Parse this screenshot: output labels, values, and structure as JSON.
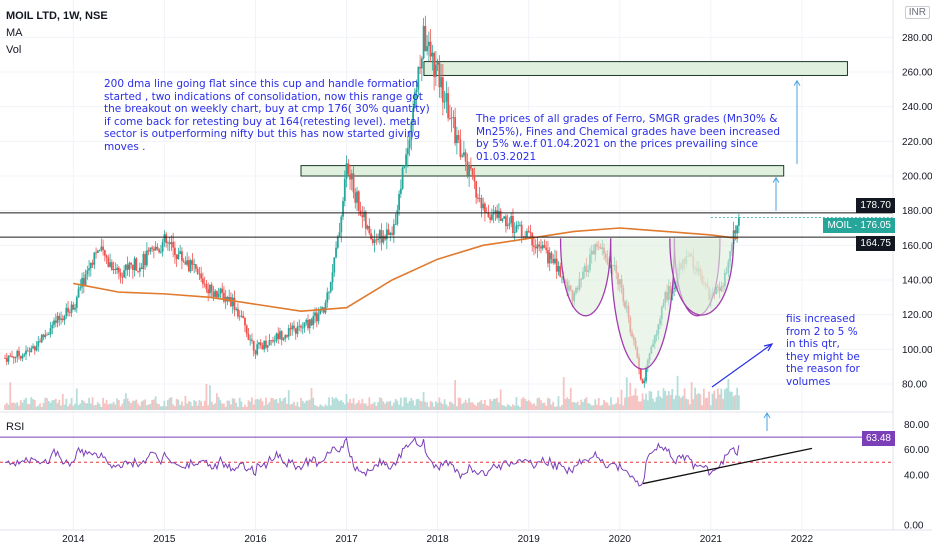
{
  "header": {
    "symbol": "MOIL LTD, 1W, NSE",
    "ma_label": "MA",
    "vol_label": "Vol",
    "currency": "INR"
  },
  "rsi_label": "RSI",
  "annotations": {
    "note1": "200 dma line going flat since this cup and handle formation started , two indications of consolidation, now this range got the breakout on weekly chart, buy at cmp 176( 30% quantity) if come back for retesting buy at 164(retesting level). metal sector is outperforming nifty but this has now started giving moves  .",
    "note2": "The prices of all grades of Ferro, SMGR grades (Mn30% & Mn25%), Fines and Chemical grades have been increased by 5% w.e.f 01.04.2021 on the prices prevailing since 01.03.2021",
    "note3": "fiis increased from 2 to 5 % in this qtr, they might be the reason for volumes"
  },
  "badges": {
    "level_high": "178.70",
    "current": "MOIL · 176.05",
    "level_low": "164.75",
    "rsi_value": "63.48"
  },
  "colors": {
    "up": "#26a69a",
    "down": "#ef5350",
    "ma": "#e07a2e",
    "rsi": "#7b3fb8",
    "annotation": "#2a2ee8",
    "zone_fill": "#dff0df",
    "cup": "#a33cb0"
  },
  "chart_data": {
    "type": "candlestick",
    "title": "MOIL LTD, 1W, NSE",
    "y_ticks": [
      80,
      100,
      120,
      140,
      160,
      180,
      200,
      220,
      240,
      260,
      280
    ],
    "x_ticks": [
      "2014",
      "2015",
      "2016",
      "2017",
      "2018",
      "2019",
      "2020",
      "2021",
      "2022"
    ],
    "ylim": [
      65,
      290
    ],
    "price_path": [
      [
        2013.25,
        95
      ],
      [
        2013.5,
        98
      ],
      [
        2013.75,
        112
      ],
      [
        2014.0,
        125
      ],
      [
        2014.25,
        158
      ],
      [
        2014.5,
        145
      ],
      [
        2014.75,
        150
      ],
      [
        2015.0,
        162
      ],
      [
        2015.25,
        150
      ],
      [
        2015.5,
        135
      ],
      [
        2015.75,
        128
      ],
      [
        2016.0,
        100
      ],
      [
        2016.25,
        108
      ],
      [
        2016.5,
        112
      ],
      [
        2016.75,
        122
      ],
      [
        2016.9,
        160
      ],
      [
        2017.0,
        205
      ],
      [
        2017.25,
        165
      ],
      [
        2017.5,
        165
      ],
      [
        2017.75,
        245
      ],
      [
        2017.85,
        280
      ],
      [
        2018.0,
        258
      ],
      [
        2018.25,
        215
      ],
      [
        2018.5,
        180
      ],
      [
        2018.75,
        175
      ],
      [
        2019.0,
        165
      ],
      [
        2019.25,
        152
      ],
      [
        2019.5,
        130
      ],
      [
        2019.75,
        160
      ],
      [
        2020.0,
        140
      ],
      [
        2020.25,
        80
      ],
      [
        2020.5,
        130
      ],
      [
        2020.75,
        155
      ],
      [
        2021.0,
        130
      ],
      [
        2021.15,
        140
      ],
      [
        2021.3,
        176.05
      ]
    ],
    "ma200": [
      [
        2014.0,
        138
      ],
      [
        2014.5,
        133
      ],
      [
        2015.0,
        132
      ],
      [
        2015.5,
        130
      ],
      [
        2016.0,
        126
      ],
      [
        2016.5,
        122
      ],
      [
        2017.0,
        124
      ],
      [
        2017.5,
        140
      ],
      [
        2018.0,
        152
      ],
      [
        2018.5,
        160
      ],
      [
        2019.0,
        164
      ],
      [
        2019.5,
        168
      ],
      [
        2020.0,
        170
      ],
      [
        2020.5,
        168
      ],
      [
        2021.0,
        166
      ],
      [
        2021.3,
        164
      ]
    ],
    "levels": [
      {
        "name": "level-178-70",
        "value": 178.7
      },
      {
        "name": "level-164-75",
        "value": 164.75
      }
    ],
    "zones": [
      {
        "from": 2017.85,
        "to": 2022.5,
        "low": 258,
        "high": 266
      },
      {
        "from": 2016.5,
        "to": 2021.8,
        "low": 200,
        "high": 206
      }
    ],
    "current_price": 176.05,
    "rsi": {
      "ylim": [
        0,
        90
      ],
      "y_ticks": [
        "0.00",
        "40.00",
        "60.00",
        "80.00"
      ],
      "current": 63.48,
      "levels": [
        30,
        50,
        70
      ]
    }
  }
}
